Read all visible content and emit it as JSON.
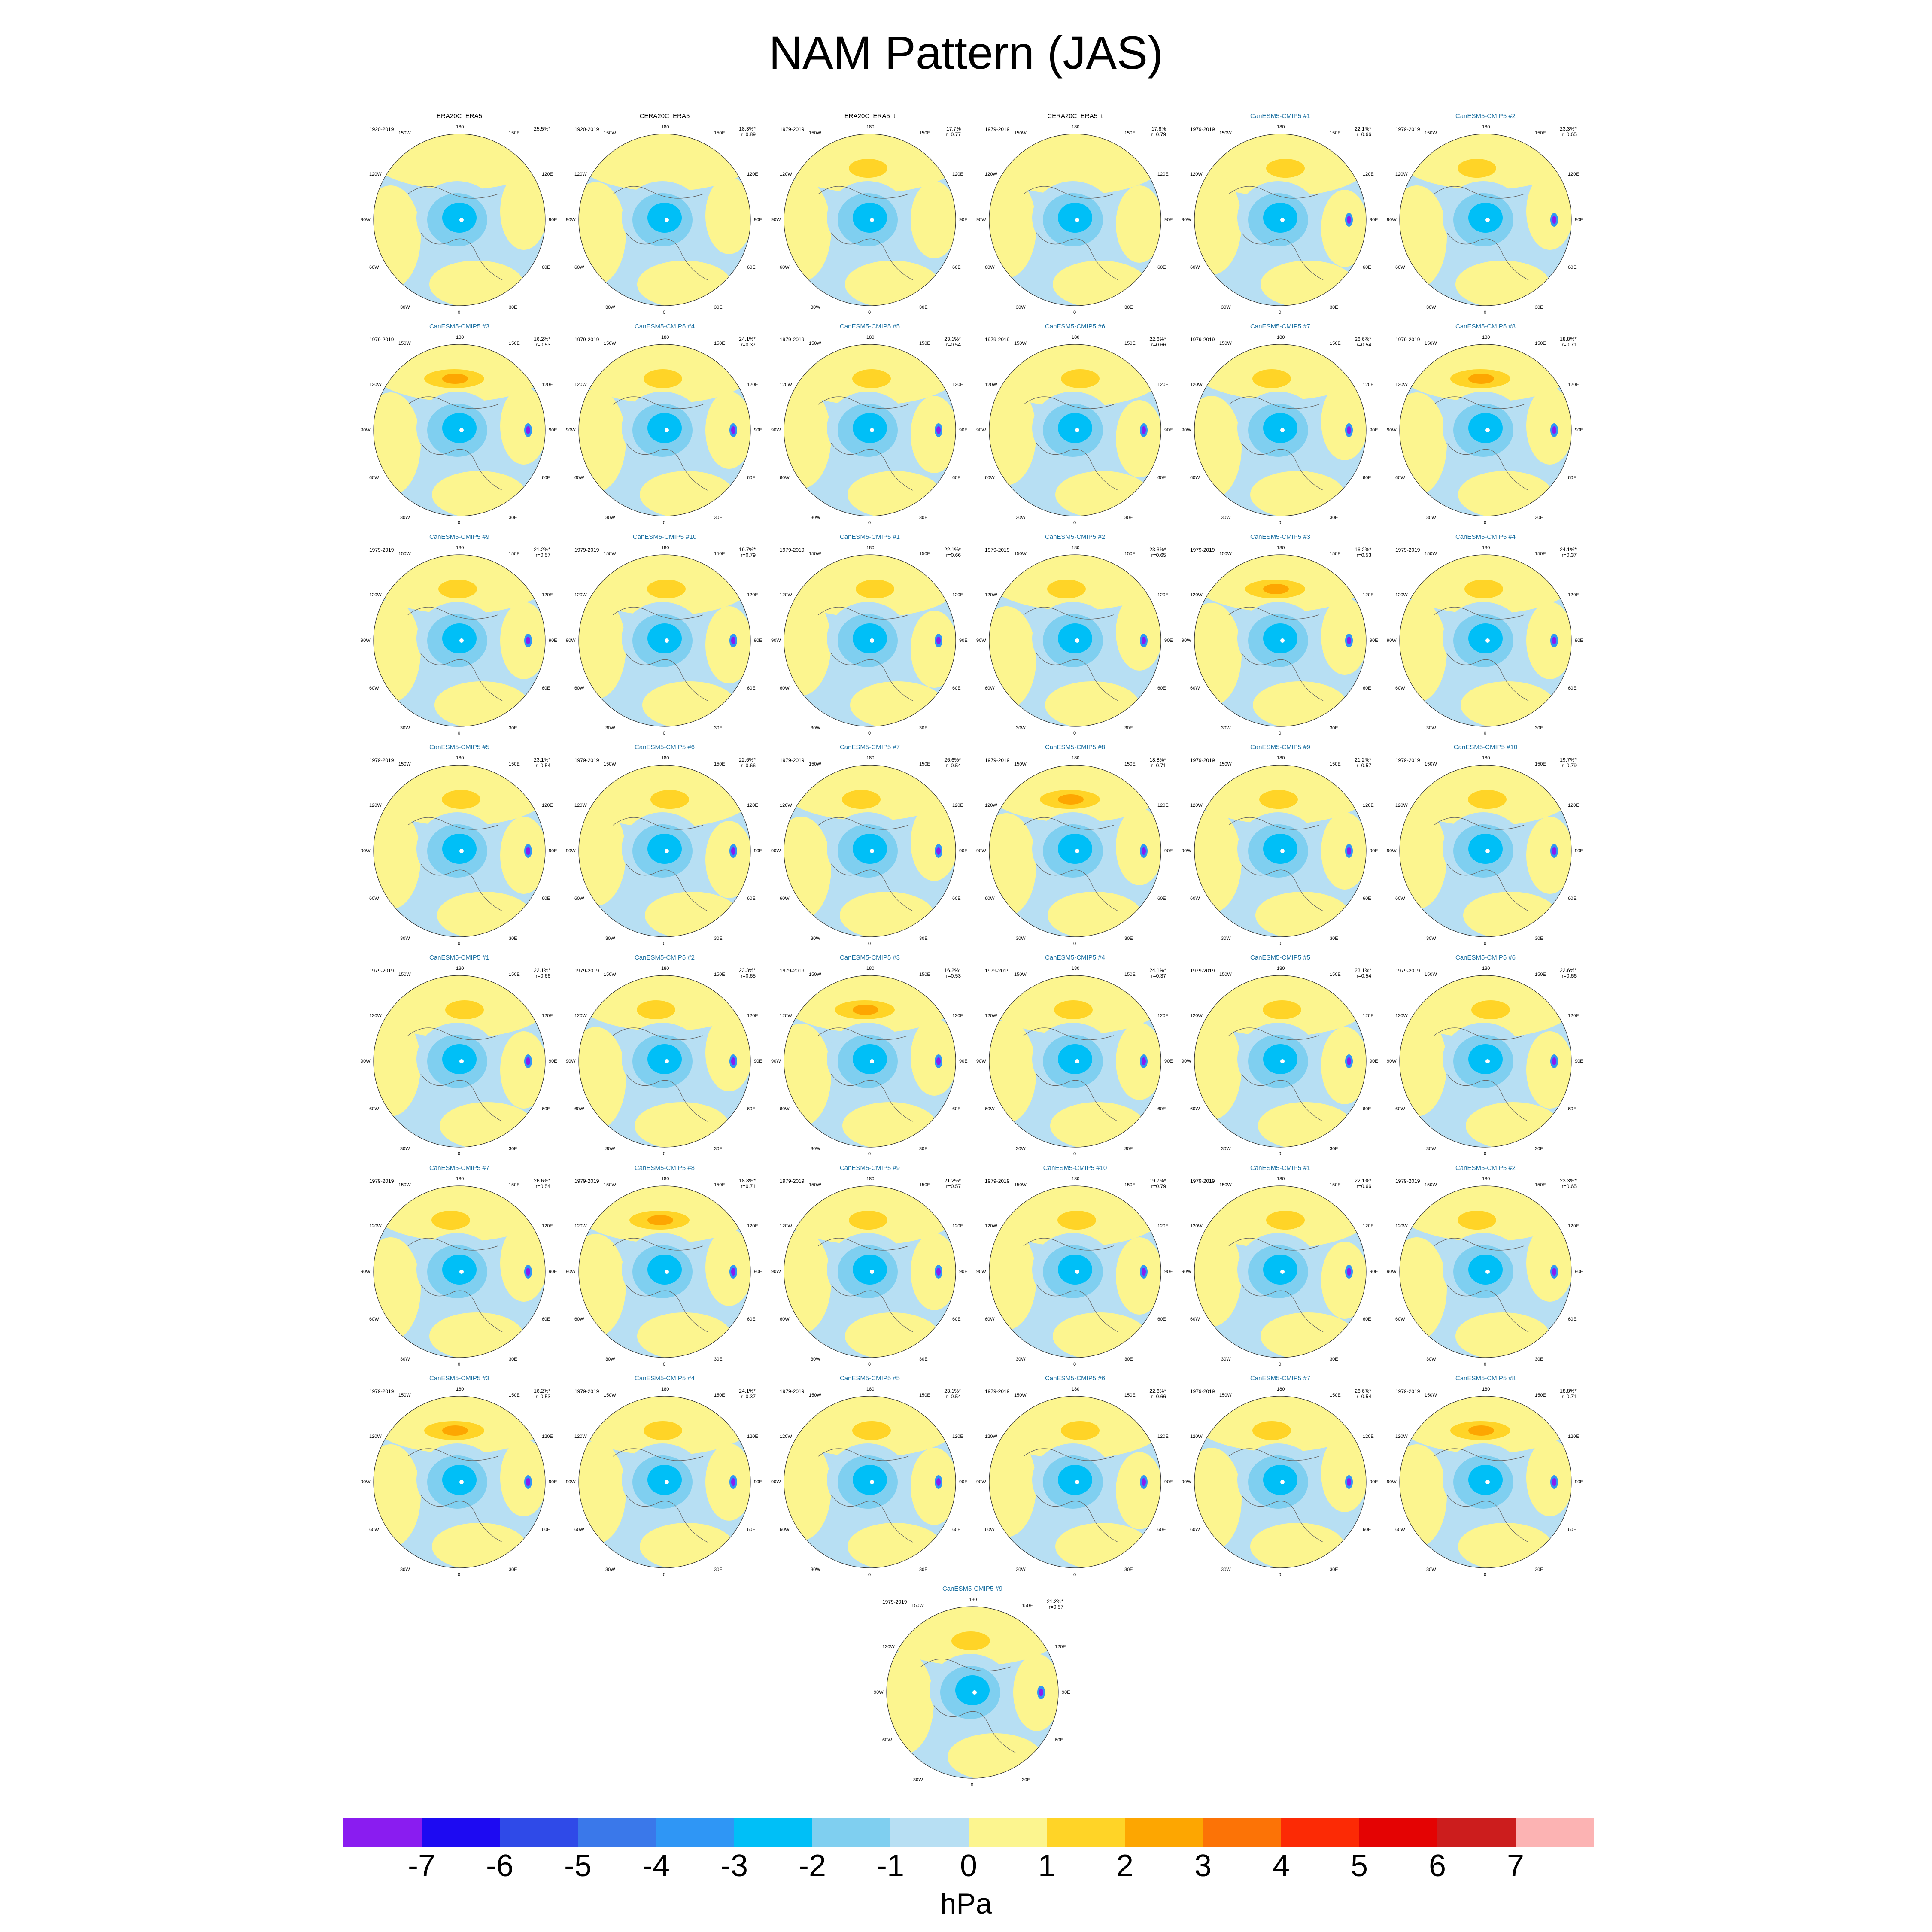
{
  "title": "NAM Pattern (JAS)",
  "units": "hPa",
  "colorbar": {
    "colors": [
      "#8a1cf0",
      "#1d0af2",
      "#2f4ae8",
      "#3a78ea",
      "#2f96f5",
      "#00bff7",
      "#7fcff0",
      "#b7dff3",
      "#fcf58f",
      "#ffd427",
      "#fda601",
      "#fc7306",
      "#fc2a05",
      "#e40303",
      "#cc1d1d",
      "#fcb3b3"
    ],
    "ticks": [
      "-7",
      "-6",
      "-5",
      "-4",
      "-3",
      "-2",
      "-1",
      "0",
      "1",
      "2",
      "3",
      "4",
      "5",
      "6",
      "7"
    ]
  },
  "map_labels": {
    "top": "180",
    "bottom": "0",
    "left": "90W",
    "right": "90E",
    "upper_left_1": "150W",
    "upper_left_2": "120W",
    "lower_left_1": "60W",
    "lower_left_2": "30W",
    "upper_right_1": "150E",
    "upper_right_2": "120E",
    "lower_right_1": "60E",
    "lower_right_2": "30E"
  },
  "panels": [
    {
      "title": "ERA20C_ERA5",
      "period": "1920-2019",
      "pct": "25.5%*",
      "r": "",
      "type": "obs"
    },
    {
      "title": "CERA20C_ERA5",
      "period": "1920-2019",
      "pct": "18.3%*",
      "r": "r=0.89",
      "type": "obs"
    },
    {
      "title": "ERA20C_ERA5_t",
      "period": "1979-2019",
      "pct": "17.7%",
      "r": "r=0.77",
      "type": "obs"
    },
    {
      "title": "CERA20C_ERA5_t",
      "period": "1979-2019",
      "pct": "17.8%",
      "r": "r=0.79",
      "type": "obs"
    },
    {
      "title": "CanESM5-CMIP5 #1",
      "period": "1979-2019",
      "pct": "22.1%*",
      "r": "r=0.66",
      "type": "model"
    },
    {
      "title": "CanESM5-CMIP5 #2",
      "period": "1979-2019",
      "pct": "23.3%*",
      "r": "r=0.65",
      "type": "model"
    },
    {
      "title": "CanESM5-CMIP5 #3",
      "period": "1979-2019",
      "pct": "16.2%*",
      "r": "r=0.53",
      "type": "model"
    },
    {
      "title": "CanESM5-CMIP5 #4",
      "period": "1979-2019",
      "pct": "24.1%*",
      "r": "r=0.37",
      "type": "model"
    },
    {
      "title": "CanESM5-CMIP5 #5",
      "period": "1979-2019",
      "pct": "23.1%*",
      "r": "r=0.54",
      "type": "model"
    },
    {
      "title": "CanESM5-CMIP5 #6",
      "period": "1979-2019",
      "pct": "22.6%*",
      "r": "r=0.66",
      "type": "model"
    },
    {
      "title": "CanESM5-CMIP5 #7",
      "period": "1979-2019",
      "pct": "26.6%*",
      "r": "r=0.54",
      "type": "model"
    },
    {
      "title": "CanESM5-CMIP5 #8",
      "period": "1979-2019",
      "pct": "18.8%*",
      "r": "r=0.71",
      "type": "model"
    },
    {
      "title": "CanESM5-CMIP5 #9",
      "period": "1979-2019",
      "pct": "21.2%*",
      "r": "r=0.57",
      "type": "model"
    },
    {
      "title": "CanESM5-CMIP5 #10",
      "period": "1979-2019",
      "pct": "19.7%*",
      "r": "r=0.79",
      "type": "model"
    },
    {
      "title": "CanESM5-CMIP5 #1",
      "period": "1979-2019",
      "pct": "22.1%*",
      "r": "r=0.66",
      "type": "model"
    },
    {
      "title": "CanESM5-CMIP5 #2",
      "period": "1979-2019",
      "pct": "23.3%*",
      "r": "r=0.65",
      "type": "model"
    },
    {
      "title": "CanESM5-CMIP5 #3",
      "period": "1979-2019",
      "pct": "16.2%*",
      "r": "r=0.53",
      "type": "model"
    },
    {
      "title": "CanESM5-CMIP5 #4",
      "period": "1979-2019",
      "pct": "24.1%*",
      "r": "r=0.37",
      "type": "model"
    },
    {
      "title": "CanESM5-CMIP5 #5",
      "period": "1979-2019",
      "pct": "23.1%*",
      "r": "r=0.54",
      "type": "model"
    },
    {
      "title": "CanESM5-CMIP5 #6",
      "period": "1979-2019",
      "pct": "22.6%*",
      "r": "r=0.66",
      "type": "model"
    },
    {
      "title": "CanESM5-CMIP5 #7",
      "period": "1979-2019",
      "pct": "26.6%*",
      "r": "r=0.54",
      "type": "model"
    },
    {
      "title": "CanESM5-CMIP5 #8",
      "period": "1979-2019",
      "pct": "18.8%*",
      "r": "r=0.71",
      "type": "model"
    },
    {
      "title": "CanESM5-CMIP5 #9",
      "period": "1979-2019",
      "pct": "21.2%*",
      "r": "r=0.57",
      "type": "model"
    },
    {
      "title": "CanESM5-CMIP5 #10",
      "period": "1979-2019",
      "pct": "19.7%*",
      "r": "r=0.79",
      "type": "model"
    },
    {
      "title": "CanESM5-CMIP5 #1",
      "period": "1979-2019",
      "pct": "22.1%*",
      "r": "r=0.66",
      "type": "model"
    },
    {
      "title": "CanESM5-CMIP5 #2",
      "period": "1979-2019",
      "pct": "23.3%*",
      "r": "r=0.65",
      "type": "model"
    },
    {
      "title": "CanESM5-CMIP5 #3",
      "period": "1979-2019",
      "pct": "16.2%*",
      "r": "r=0.53",
      "type": "model"
    },
    {
      "title": "CanESM5-CMIP5 #4",
      "period": "1979-2019",
      "pct": "24.1%*",
      "r": "r=0.37",
      "type": "model"
    },
    {
      "title": "CanESM5-CMIP5 #5",
      "period": "1979-2019",
      "pct": "23.1%*",
      "r": "r=0.54",
      "type": "model"
    },
    {
      "title": "CanESM5-CMIP5 #6",
      "period": "1979-2019",
      "pct": "22.6%*",
      "r": "r=0.66",
      "type": "model"
    },
    {
      "title": "CanESM5-CMIP5 #7",
      "period": "1979-2019",
      "pct": "26.6%*",
      "r": "r=0.54",
      "type": "model"
    },
    {
      "title": "CanESM5-CMIP5 #8",
      "period": "1979-2019",
      "pct": "18.8%*",
      "r": "r=0.71",
      "type": "model"
    },
    {
      "title": "CanESM5-CMIP5 #9",
      "period": "1979-2019",
      "pct": "21.2%*",
      "r": "r=0.57",
      "type": "model"
    },
    {
      "title": "CanESM5-CMIP5 #10",
      "period": "1979-2019",
      "pct": "19.7%*",
      "r": "r=0.79",
      "type": "model"
    },
    {
      "title": "CanESM5-CMIP5 #1",
      "period": "1979-2019",
      "pct": "22.1%*",
      "r": "r=0.66",
      "type": "model"
    },
    {
      "title": "CanESM5-CMIP5 #2",
      "period": "1979-2019",
      "pct": "23.3%*",
      "r": "r=0.65",
      "type": "model"
    },
    {
      "title": "CanESM5-CMIP5 #3",
      "period": "1979-2019",
      "pct": "16.2%*",
      "r": "r=0.53",
      "type": "model"
    },
    {
      "title": "CanESM5-CMIP5 #4",
      "period": "1979-2019",
      "pct": "24.1%*",
      "r": "r=0.37",
      "type": "model"
    },
    {
      "title": "CanESM5-CMIP5 #5",
      "period": "1979-2019",
      "pct": "23.1%*",
      "r": "r=0.54",
      "type": "model"
    },
    {
      "title": "CanESM5-CMIP5 #6",
      "period": "1979-2019",
      "pct": "22.6%*",
      "r": "r=0.66",
      "type": "model"
    },
    {
      "title": "CanESM5-CMIP5 #7",
      "period": "1979-2019",
      "pct": "26.6%*",
      "r": "r=0.54",
      "type": "model"
    },
    {
      "title": "CanESM5-CMIP5 #8",
      "period": "1979-2019",
      "pct": "18.8%*",
      "r": "r=0.71",
      "type": "model"
    },
    {
      "title": "CanESM5-CMIP5 #9",
      "period": "1979-2019",
      "pct": "21.2%*",
      "r": "r=0.57",
      "type": "model"
    }
  ]
}
